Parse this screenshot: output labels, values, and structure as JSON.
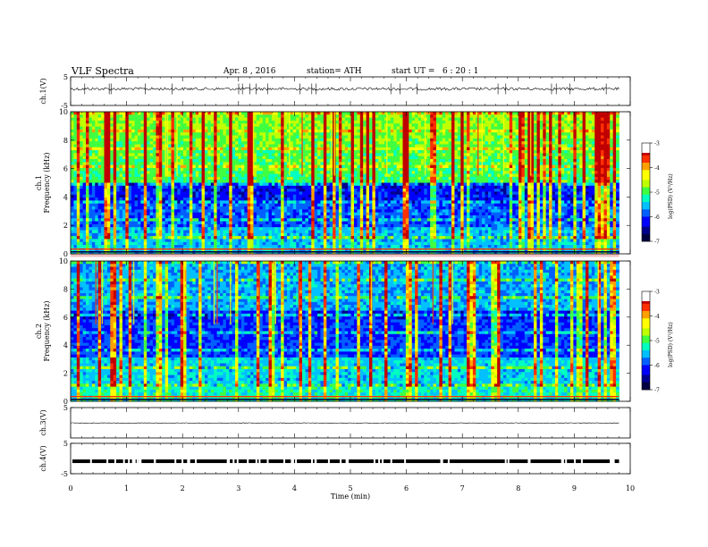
{
  "header": {
    "title": "VLF Spectra",
    "date": "Apr. 8 , 2016",
    "station": "station= ATH",
    "start_ut": "start UT =   6 : 20 : 1"
  },
  "chart_data": {
    "type": "heatmap",
    "xlabel": "Time (min)",
    "xlim": [
      0,
      10
    ],
    "xticks": [
      "0",
      "1",
      "2",
      "3",
      "4",
      "5",
      "6",
      "7",
      "8",
      "9",
      "10"
    ],
    "panels": [
      {
        "id": "ch1-waveform",
        "type": "line",
        "ylabel": "ch.1(V)",
        "ylim": [
          -5,
          5
        ],
        "yticks": [
          "5",
          "-5"
        ],
        "baseline": 0.8
      },
      {
        "id": "ch1-spectrogram",
        "type": "heatmap",
        "ylabel": "ch.1\nFrequency (kHz)",
        "ylim": [
          0,
          10
        ],
        "yticks": [
          "0",
          "2",
          "4",
          "6",
          "8",
          "10"
        ],
        "colorbar": {
          "label": "log(PSD) (V²/Hz)",
          "range": [
            -7,
            -3
          ],
          "ticks": [
            "-3",
            "-4",
            "-5",
            "-6",
            "-7"
          ]
        }
      },
      {
        "id": "ch2-spectrogram",
        "type": "heatmap",
        "ylabel": "ch.2\nFrequency (kHz)",
        "ylim": [
          0,
          10
        ],
        "yticks": [
          "0",
          "2",
          "4",
          "6",
          "8",
          "10"
        ],
        "colorbar": {
          "label": "log(PSD) (V²/Hz)",
          "range": [
            -7,
            -3
          ],
          "ticks": [
            "-3",
            "-4",
            "-5",
            "-6",
            "-7"
          ]
        }
      },
      {
        "id": "ch3-waveform",
        "type": "line",
        "ylabel": "ch.3(V)",
        "ylim": [
          -5,
          5
        ],
        "yticks": [
          "5"
        ],
        "baseline": -0.1
      },
      {
        "id": "ch4-waveform",
        "type": "line",
        "ylabel": "ch.4(V)",
        "ylim": [
          -5,
          5
        ],
        "yticks": [
          "5",
          "-5"
        ],
        "baseline": -0.9
      }
    ],
    "x_range_with_data": [
      0,
      9.8
    ],
    "grid": false
  },
  "colors": {
    "colormap": [
      "#000040",
      "#00008f",
      "#0000ff",
      "#0060ff",
      "#00c0ff",
      "#00ffc0",
      "#40ff40",
      "#c0ff00",
      "#ffff00",
      "#ffa000",
      "#ff3000",
      "#c00000"
    ],
    "trace": "#000000",
    "axis": "#000000"
  }
}
